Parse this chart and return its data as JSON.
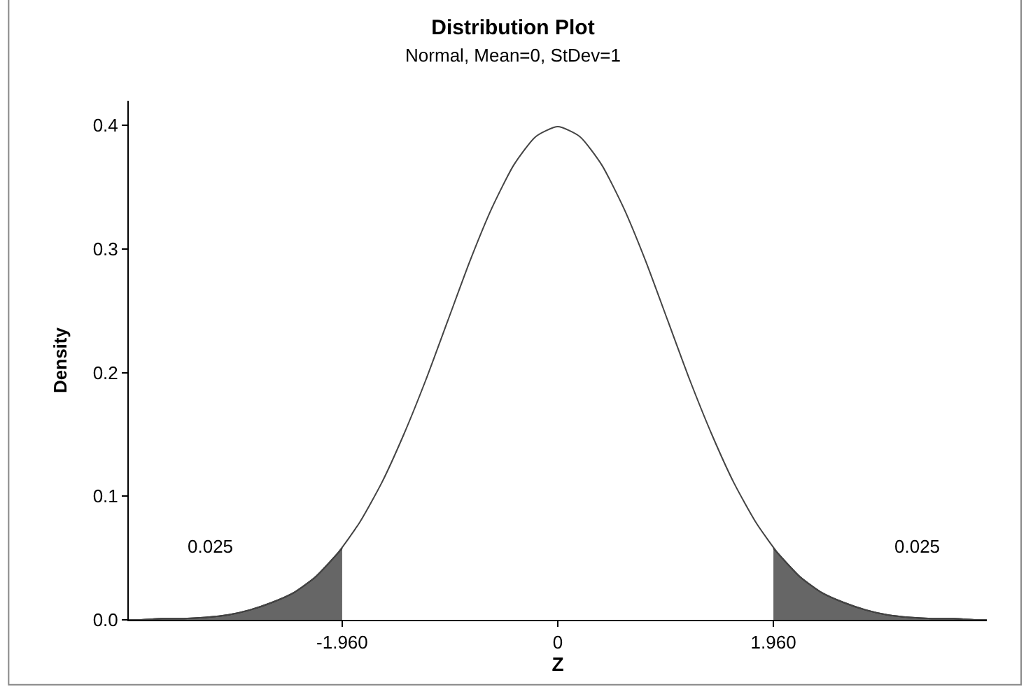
{
  "chart_data": {
    "type": "line",
    "title": "Distribution Plot",
    "subtitle": "Normal, Mean=0, StDev=1",
    "xlabel": "Z",
    "ylabel": "Density",
    "xlim": [
      -3.9,
      3.9
    ],
    "ylim": [
      0,
      0.42
    ],
    "xticks": [
      {
        "value": -1.96,
        "label": "-1.960"
      },
      0,
      {
        "value": 1.96,
        "label": "1.960"
      }
    ],
    "yticks": [
      {
        "value": 0,
        "label": "0.0"
      },
      {
        "value": 0.1,
        "label": "0.1"
      },
      {
        "value": 0.2,
        "label": "0.2"
      },
      {
        "value": 0.3,
        "label": "0.3"
      },
      {
        "value": 0.4,
        "label": "0.4"
      }
    ],
    "marker": "none",
    "line_style": "solid",
    "annotations": [
      "0.025",
      "0.025"
    ],
    "series": [
      {
        "type": "area",
        "color": "#666666",
        "x": [
          -3.9,
          -3.8,
          -3.6,
          -3.4,
          -3.2,
          -3.0,
          -2.8,
          -2.6,
          -2.4,
          -2.2,
          -2.0,
          -1.96
        ],
        "values": [
          0.0,
          0.0,
          0.001,
          0.001,
          0.002,
          0.004,
          0.008,
          0.014,
          0.022,
          0.035,
          0.054,
          0.058
        ]
      },
      {
        "type": "area",
        "color": "#666666",
        "x": [
          1.96,
          2.0,
          2.2,
          2.4,
          2.6,
          2.8,
          3.0,
          3.2,
          3.4,
          3.6,
          3.8,
          3.9
        ],
        "values": [
          0.058,
          0.054,
          0.035,
          0.022,
          0.014,
          0.008,
          0.004,
          0.002,
          0.001,
          0.001,
          0.0,
          0.0
        ]
      },
      {
        "color": "#444444",
        "x": [
          -3.9,
          -3.8,
          -3.6,
          -3.4,
          -3.2,
          -3.0,
          -2.8,
          -2.6,
          -2.4,
          -2.2,
          -2.0,
          -1.8,
          -1.6,
          -1.4,
          -1.2,
          -1.0,
          -0.8,
          -0.6,
          -0.4,
          -0.2,
          0,
          0.2,
          0.4,
          0.6,
          0.8,
          1.0,
          1.2,
          1.4,
          1.6,
          1.8,
          2.0,
          2.2,
          2.4,
          2.6,
          2.8,
          3.0,
          3.2,
          3.4,
          3.6,
          3.8,
          3.9
        ],
        "values": [
          0.0,
          0.0,
          0.001,
          0.001,
          0.002,
          0.004,
          0.008,
          0.014,
          0.022,
          0.035,
          0.054,
          0.079,
          0.111,
          0.15,
          0.194,
          0.242,
          0.29,
          0.333,
          0.368,
          0.391,
          0.399,
          0.391,
          0.368,
          0.333,
          0.29,
          0.242,
          0.194,
          0.15,
          0.111,
          0.079,
          0.054,
          0.035,
          0.022,
          0.014,
          0.008,
          0.004,
          0.002,
          0.001,
          0.001,
          0.0,
          0.0
        ]
      }
    ]
  }
}
